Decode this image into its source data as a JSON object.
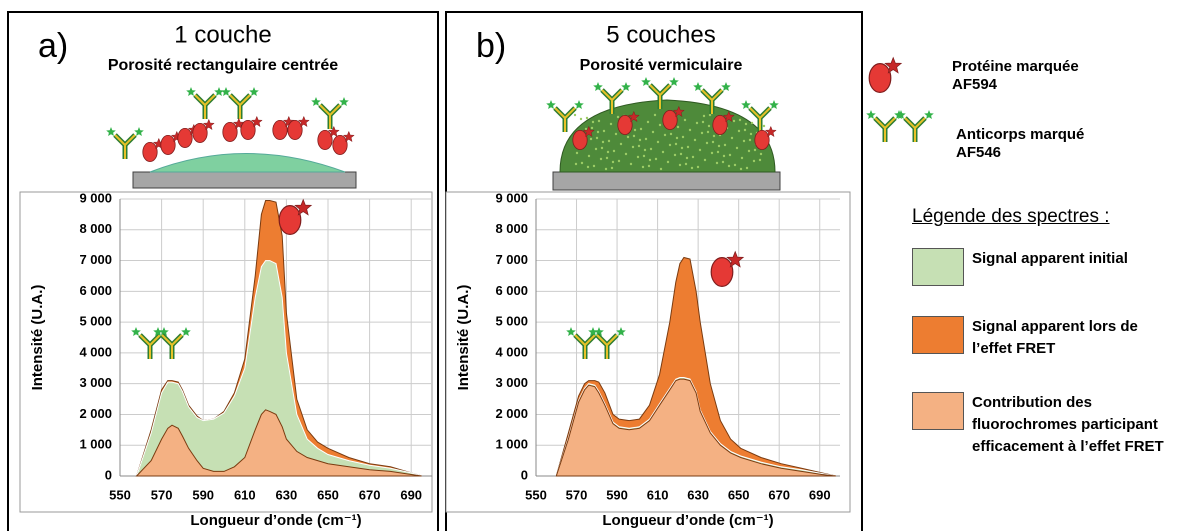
{
  "chart_data": [
    {
      "type": "area",
      "label": "a)",
      "title": "1 couche",
      "subtitle": "Porosité rectangulaire centrée",
      "xlabel": "Longueur d’onde (cm⁻¹)",
      "ylabel": "Intensité (U.A.)",
      "x": [
        558,
        565,
        570,
        573,
        575,
        578,
        580,
        583,
        587,
        590,
        595,
        600,
        605,
        610,
        615,
        618,
        620,
        622,
        625,
        628,
        630,
        635,
        640,
        645,
        650,
        660,
        670,
        680,
        690,
        695
      ],
      "series": [
        {
          "name": "Signal apparent lors de l’effet FRET",
          "color": "#ed7d31",
          "values": [
            0,
            1500,
            2800,
            3100,
            3100,
            3050,
            2800,
            2300,
            1950,
            1800,
            1850,
            2100,
            2700,
            3800,
            6500,
            8500,
            8950,
            8950,
            8900,
            7800,
            5300,
            2500,
            1500,
            1100,
            900,
            600,
            400,
            300,
            100,
            0
          ]
        },
        {
          "name": "Signal apparent initial",
          "color": "#c6e0b4",
          "values": [
            0,
            1400,
            2700,
            3050,
            3050,
            3000,
            2750,
            2250,
            1900,
            1800,
            1850,
            2050,
            2600,
            3500,
            5800,
            6800,
            7000,
            7000,
            6900,
            5800,
            4000,
            2000,
            1200,
            900,
            700,
            500,
            350,
            250,
            100,
            0
          ]
        },
        {
          "name": "Contribution des fluorochromes participant efficacement à l’effet FRET",
          "color": "#f4b183",
          "values": [
            0,
            500,
            1200,
            1550,
            1650,
            1550,
            1300,
            900,
            500,
            250,
            150,
            150,
            300,
            600,
            1500,
            2000,
            2150,
            2100,
            2000,
            1600,
            1200,
            800,
            600,
            500,
            400,
            300,
            200,
            150,
            50,
            0
          ]
        }
      ],
      "xlim": [
        550,
        700
      ],
      "xticks": [
        550,
        570,
        590,
        610,
        630,
        650,
        670,
        690
      ],
      "ylim": [
        0,
        9000
      ],
      "yticks": [
        {
          "value": 0,
          "label": "0"
        },
        {
          "value": 1000,
          "label": "1 000"
        },
        {
          "value": 2000,
          "label": "2 000"
        },
        {
          "value": 3000,
          "label": "3 000"
        },
        {
          "value": 4000,
          "label": "4 000"
        },
        {
          "value": 5000,
          "label": "5 000"
        },
        {
          "value": 6000,
          "label": "6 000"
        },
        {
          "value": 7000,
          "label": "7 000"
        },
        {
          "value": 8000,
          "label": "8 000"
        },
        {
          "value": 9000,
          "label": "9 000"
        }
      ],
      "grid": true
    },
    {
      "type": "area",
      "label": "b)",
      "title": "5 couches",
      "subtitle": "Porosité vermiculaire",
      "xlabel": "Longueur d’onde (cm⁻¹)",
      "ylabel": "Intensité (U.A.)",
      "x": [
        560,
        566,
        571,
        574,
        576,
        579,
        581,
        584,
        588,
        591,
        596,
        601,
        606,
        611,
        616,
        619,
        621,
        623,
        626,
        629,
        631,
        636,
        641,
        646,
        651,
        661,
        671,
        681,
        691,
        698
      ],
      "series": [
        {
          "color": "#ed7d31",
          "values": [
            0,
            1400,
            2600,
            3000,
            3100,
            3100,
            3050,
            2700,
            2000,
            1850,
            1800,
            1850,
            2300,
            3300,
            5000,
            6300,
            6900,
            7100,
            7050,
            6000,
            5000,
            3000,
            1800,
            1200,
            900,
            600,
            400,
            250,
            100,
            0
          ]
        },
        {
          "color": "#c6e0b4",
          "values": [
            0,
            1250,
            2450,
            2850,
            3000,
            2950,
            2750,
            2350,
            1750,
            1600,
            1550,
            1600,
            1850,
            2350,
            2850,
            3150,
            3200,
            3200,
            3150,
            2750,
            2150,
            1450,
            1050,
            800,
            650,
            450,
            300,
            200,
            80,
            0
          ]
        },
        {
          "color": "#f4b183",
          "values": [
            0,
            1200,
            2400,
            2800,
            2950,
            2900,
            2700,
            2300,
            1700,
            1550,
            1500,
            1550,
            1800,
            2300,
            2800,
            3100,
            3150,
            3150,
            3100,
            2700,
            2100,
            1400,
            1000,
            750,
            600,
            400,
            250,
            150,
            50,
            0
          ]
        }
      ],
      "xlim": [
        550,
        700
      ],
      "xticks": [
        550,
        570,
        590,
        610,
        630,
        650,
        670,
        690
      ],
      "ylim": [
        0,
        9000
      ],
      "yticks": [
        {
          "value": 0,
          "label": "0"
        },
        {
          "value": 1000,
          "label": "1 000"
        },
        {
          "value": 2000,
          "label": "2 000"
        },
        {
          "value": 3000,
          "label": "3 000"
        },
        {
          "value": 4000,
          "label": "4 000"
        },
        {
          "value": 5000,
          "label": "5 000"
        },
        {
          "value": 6000,
          "label": "6 000"
        },
        {
          "value": 7000,
          "label": "7 000"
        },
        {
          "value": 8000,
          "label": "8 000"
        },
        {
          "value": 9000,
          "label": "9 000"
        }
      ],
      "grid": true
    }
  ],
  "icons": {
    "protein": "Protéine marquée AF594",
    "antibody": "Anticorps marqué AF546"
  },
  "legend_title": "Légende des spectres :"
}
